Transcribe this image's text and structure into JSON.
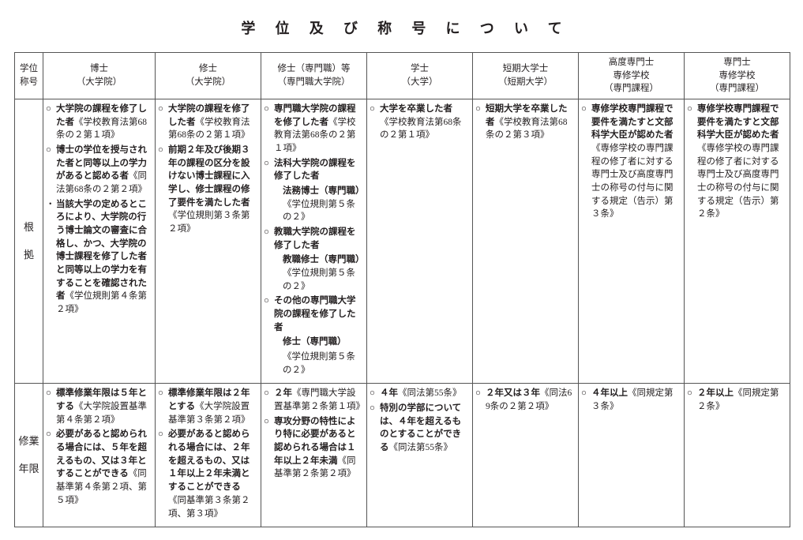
{
  "title": "学位及び称号について",
  "headers": {
    "degree_label": {
      "l1": "学位",
      "l2": "称号"
    },
    "cols": [
      {
        "main": "博士",
        "sub": "（大学院）"
      },
      {
        "main": "修士",
        "sub": "（大学院）"
      },
      {
        "main": "修士（専門職）等",
        "sub": "（専門職大学院）"
      },
      {
        "main": "学士",
        "sub": "（大学）"
      },
      {
        "main": "短期大学士",
        "sub": "（短期大学）"
      },
      {
        "main": "高度専門士",
        "sub1": "専修学校",
        "sub2": "（専門課程）"
      },
      {
        "main": "専門士",
        "sub1": "専修学校",
        "sub2": "（専門課程）"
      }
    ]
  },
  "rows": {
    "basis": {
      "label1": "根",
      "label2": "拠",
      "cells": [
        [
          {
            "mk": "○",
            "bold": "大学院の課程を修了した者",
            "norm": "《学校教育法第68条の２第１項》"
          },
          {
            "mk": "○",
            "bold": "博士の学位を授与された者と同等以上の学力があると認める者",
            "norm": "《同法第68条の２第２項》"
          },
          {
            "mk": "・",
            "bold": "当該大学の定めるところにより、大学院の行う博士論文の審査に合格し、かつ、大学院の博士課程を修了した者と同等以上の学力を有することを確認された者",
            "norm": "《学位規則第４条第２項》"
          }
        ],
        [
          {
            "mk": "○",
            "bold": "大学院の課程を修了した者",
            "norm": "《学校教育法第68条の２第１項》"
          },
          {
            "mk": "○",
            "bold": "前期２年及び後期３年の課程の区分を設けない博士課程に入学し、修士課程の修了要件を満たした者",
            "norm": "《学位規則第３条第２項》"
          }
        ],
        [
          {
            "mk": "○",
            "bold": "専門職大学院の課程を修了した者",
            "norm": "《学校教育法第68条の２第１項》"
          },
          {
            "mk": "○",
            "bold": "法科大学院の課程を修了した者",
            "indentBold": "法務博士（専門職）",
            "norm": "《学位規則第５条の２》"
          },
          {
            "mk": "○",
            "bold": "教職大学院の課程を修了した者",
            "indentBold": "教職修士（専門職）",
            "norm": "《学位規則第５条の２》"
          },
          {
            "mk": "○",
            "bold": "その他の専門職大学院の課程を修了した者",
            "indentBold": "修士（専門職）",
            "indentNorm": "《学位規則第５条の２》"
          }
        ],
        [
          {
            "mk": "○",
            "bold": "大学を卒業した者",
            "norm": "《学校教育法第68条の２第１項》"
          }
        ],
        [
          {
            "mk": "○",
            "bold": "短期大学を卒業した者",
            "norm": "《学校教育法第68条の２第３項》"
          }
        ],
        [
          {
            "mk": "○",
            "bold": "専修学校専門課程で要件を満たすと文部科学大臣が認めた者",
            "norm": "《専修学校の専門課程の修了者に対する専門士及び高度専門士の称号の付与に関する規定（告示）第３条》"
          }
        ],
        [
          {
            "mk": "○",
            "bold": "専修学校専門課程で要件を満たすと文部科学大臣が認めた者",
            "norm": "《専修学校の専門課程の修了者に対する専門士及び高度専門士の称号の付与に関する規定（告示）第２条》"
          }
        ]
      ]
    },
    "term": {
      "label1": "修業",
      "label2": "年限",
      "cells": [
        [
          {
            "mk": "○",
            "bold": "標準修業年限は５年とする",
            "norm": "《大学院設置基準第４条第２項》"
          },
          {
            "mk": "○",
            "bold": "必要があると認められる場合には、５年を超えるもの、又は３年とすることができる",
            "norm": "《同基準第４条第２項、第５項》"
          }
        ],
        [
          {
            "mk": "○",
            "bold": "標準修業年限は２年とする",
            "norm": "《大学院設置基準第３条第２項》"
          },
          {
            "mk": "○",
            "bold": "必要があると認められる場合には、２年を超えるもの、又は１年以上２年未満とすることができる",
            "norm": "《同基準第３条第２項、第３項》"
          }
        ],
        [
          {
            "mk": "○",
            "bold": "２年",
            "norm": "《専門職大学設置基準第２条第１項》"
          },
          {
            "mk": "○",
            "bold": "専攻分野の特性により特に必要があると認められる場合は１年以上２年未満",
            "norm": "《同基準第２条第２項》"
          }
        ],
        [
          {
            "mk": "○",
            "bold": "４年",
            "norm": "《同法第55条》"
          },
          {
            "mk": "○",
            "bold": "特別の学部については、４年を超えるものとすることができる",
            "norm": "《同法第55条》"
          }
        ],
        [
          {
            "mk": "○",
            "bold": "２年又は３年",
            "norm": "《同法69条の２第２項》"
          }
        ],
        [
          {
            "mk": "○",
            "bold": "４年以上",
            "norm": "《同規定第３条》"
          }
        ],
        [
          {
            "mk": "○",
            "bold": "２年以上",
            "norm": "《同規定第２条》"
          }
        ]
      ]
    }
  }
}
